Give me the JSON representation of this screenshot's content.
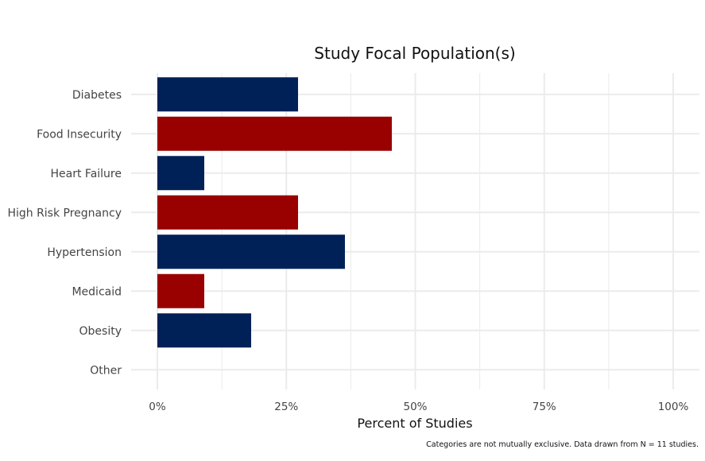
{
  "chart_data": {
    "type": "bar",
    "orientation": "horizontal",
    "title": "Study Focal Population(s)",
    "xlabel": "Percent of Studies",
    "ylabel": "",
    "caption": "Categories are not mutually exclusive. Data drawn from N = 11 studies.",
    "categories": [
      "Diabetes",
      "Food Insecurity",
      "Heart Failure",
      "High Risk Pregnancy",
      "Hypertension",
      "Medicaid",
      "Obesity",
      "Other"
    ],
    "values": [
      27.27,
      45.45,
      9.09,
      27.27,
      36.36,
      9.09,
      18.18,
      0
    ],
    "bar_colors": [
      "#002157",
      "#990000",
      "#002157",
      "#990000",
      "#002157",
      "#990000",
      "#002157",
      "#990000"
    ],
    "xlim": [
      -5,
      105
    ],
    "xticks": [
      0,
      25,
      50,
      75,
      100
    ],
    "xtick_labels": [
      "0%",
      "25%",
      "50%",
      "75%",
      "100%"
    ],
    "grid": true,
    "legend": "none"
  }
}
